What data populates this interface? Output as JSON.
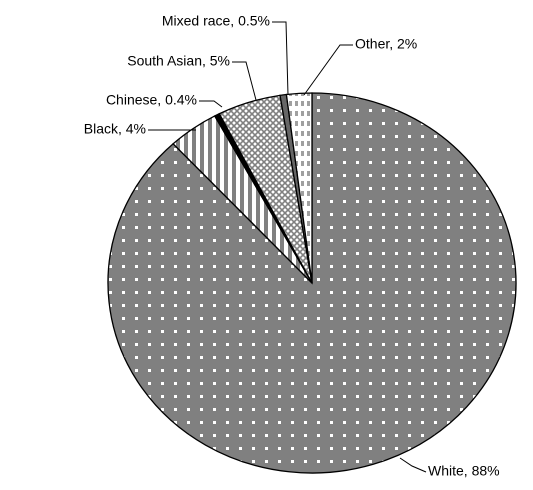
{
  "chart_data": {
    "type": "pie",
    "values": [
      88,
      4,
      0.4,
      5,
      0.5,
      2
    ],
    "value_labels": [
      "White, 88%",
      "Black, 4%",
      "Chinese, 0.4%",
      "South Asian, 5%",
      "Mixed race, 0.5%",
      "Other, 2%"
    ],
    "colors": [
      "#808080",
      "#808080",
      "#000000",
      "#808080",
      "#666666",
      "#a0a0a0"
    ],
    "start_angle": 0,
    "direction": "clockwise"
  }
}
